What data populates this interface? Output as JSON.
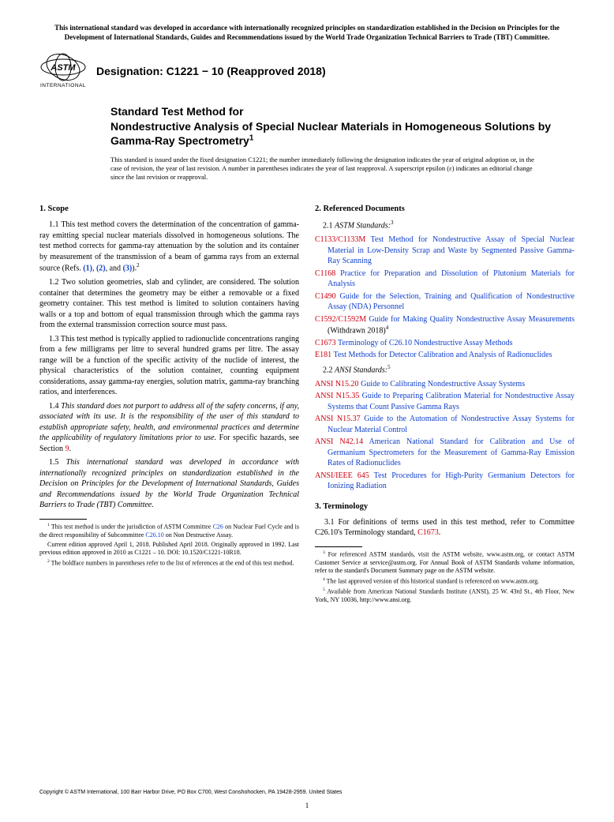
{
  "header_note": "This international standard was developed in accordance with internationally recognized principles on standardization established in the Decision on Principles for the Development of International Standards, Guides and Recommendations issued by the World Trade Organization Technical Barriers to Trade (TBT) Committee.",
  "logo_label": "INTERNATIONAL",
  "designation": "Designation: C1221 − 10 (Reapproved 2018)",
  "title_prefix": "Standard Test Method for",
  "title_main": "Nondestructive Analysis of Special Nuclear Materials in Homogeneous Solutions by Gamma-Ray Spectrometry",
  "title_sup": "1",
  "issuance": "This standard is issued under the fixed designation C1221; the number immediately following the designation indicates the year of original adoption or, in the case of revision, the year of last revision. A number in parentheses indicates the year of last reapproval. A superscript epsilon (ε) indicates an editorial change since the last revision or reapproval.",
  "scope_head": "1. Scope",
  "scope_11a": "1.1 This test method covers the determination of the concentration of gamma-ray emitting special nuclear materials dissolved in homogeneous solutions. The test method corrects for gamma-ray attenuation by the solution and its container by measurement of the transmission of a beam of gamma rays from an external source (Refs. ",
  "r1": "(1)",
  "r2": "(2)",
  "r3": "(3)",
  "scope_11b": ").",
  "scope_12": "1.2 Two solution geometries, slab and cylinder, are considered. The solution container that determines the geometry may be either a removable or a fixed geometry container. This test method is limited to solution containers having walls or a top and bottom of equal transmission through which the gamma rays from the external transmission correction source must pass.",
  "scope_13": "1.3 This test method is typically applied to radionuclide concentrations ranging from a few milligrams per litre to several hundred grams per litre. The assay range will be a function of the specific activity of the nuclide of interest, the physical characteristics of the solution container, counting equipment considerations, assay gamma-ray energies, solution matrix, gamma-ray branching ratios, and interferences.",
  "scope_14a": "1.4 ",
  "scope_14b": "This standard does not purport to address all of the safety concerns, if any, associated with its use. It is the responsibility of the user of this standard to establish appropriate safety, health, and environmental practices and determine the applicability of regulatory limitations prior to use.",
  "scope_14c": " For specific hazards, see Section ",
  "scope_14d": "9",
  "scope_14e": ".",
  "scope_15a": "1.5 ",
  "scope_15b": "This international standard was developed in accordance with internationally recognized principles on standardization established in the Decision on Principles for the Development of International Standards, Guides and Recommendations issued by the World Trade Organization Technical Barriers to Trade (TBT) Committee.",
  "ref_head": "2. Referenced Documents",
  "astm_sub": "2.1 ",
  "astm_sub_i": "ASTM Standards:",
  "astm_sup": "3",
  "astm": [
    {
      "id": "C1133/C1133M",
      "t": "Test Method for Nondestructive Assay of Special Nuclear Material in Low-Density Scrap and Waste by Segmented Passive Gamma-Ray Scanning"
    },
    {
      "id": "C1168",
      "t": "Practice for Preparation and Dissolution of Plutonium Materials for Analysis"
    },
    {
      "id": "C1490",
      "t": "Guide for the Selection, Training and Qualification of Nondestructive Assay (NDA) Personnel"
    },
    {
      "id": "C1592/C1592M",
      "t": "Guide for Making Quality Nondestructive Assay Measurements",
      "wd": " (Withdrawn 2018)",
      "ws": "4"
    },
    {
      "id": "C1673",
      "t": "Terminology of C26.10 Nondestructive Assay Methods"
    },
    {
      "id": "E181",
      "t": "Test Methods for Detector Calibration and Analysis of Radionuclides"
    }
  ],
  "ansi_sub": "2.2 ",
  "ansi_sub_i": "ANSI Standards:",
  "ansi_sup": "5",
  "ansi": [
    {
      "id": "ANSI N15.20",
      "t": "Guide to Calibrating Nondestructive Assay Systems"
    },
    {
      "id": "ANSI N15.35",
      "t": "Guide to Preparing Calibration Material for Nondestructive Assay Systems that Count Passive Gamma Rays"
    },
    {
      "id": "ANSI N15.37",
      "t": "Guide to the Automation of Nondestructive Assay Systems for Nuclear Material Control"
    },
    {
      "id": "ANSI N42.14",
      "t": "American National Standard for Calibration and Use of Germanium Spectrometers for the Measurement of Gamma-Ray Emission Rates of Radionuclides"
    },
    {
      "id": "ANSI/IEEE 645",
      "t": "Test Procedures for High-Purity Germanium Detectors for Ionizing Radiation"
    }
  ],
  "term_head": "3. Terminology",
  "term_31a": "3.1 For definitions of terms used in this test method, refer to Committee C26.10's Terminology standard, ",
  "term_31b": "C1673",
  "term_31c": ".",
  "fn_left": [
    {
      "s": "1",
      "pre": "This test method is under the jurisdiction of ASTM Committee ",
      "l1": "C26",
      "mid": " on Nuclear Fuel Cycle and is the direct responsibility of Subcommittee ",
      "l2": "C26.10",
      "post": " on Non Destructive Assay."
    },
    {
      "t": "Current edition approved April 1, 2018. Published April 2018. Originally approved in 1992. Last previous edition approved in 2010 as C1221 – 10. DOI: 10.1520/C1221-10R18."
    },
    {
      "s": "2",
      "t": "The boldface numbers in parentheses refer to the list of references at the end of this test method."
    }
  ],
  "fn_right": [
    {
      "s": "3",
      "t": "For referenced ASTM standards, visit the ASTM website, www.astm.org, or contact ASTM Customer Service at service@astm.org. For Annual Book of ASTM Standards volume information, refer to the standard's Document Summary page on the ASTM website."
    },
    {
      "s": "4",
      "t": "The last approved version of this historical standard is referenced on www.astm.org."
    },
    {
      "s": "5",
      "t": "Available from American National Standards Institute (ANSI), 25 W. 43rd St., 4th Floor, New York, NY 10036, http://www.ansi.org."
    }
  ],
  "copyright": "Copyright © ASTM International, 100 Barr Harbor Drive, PO Box C700, West Conshohocken, PA 19428-2959. United States",
  "pagenum": "1"
}
